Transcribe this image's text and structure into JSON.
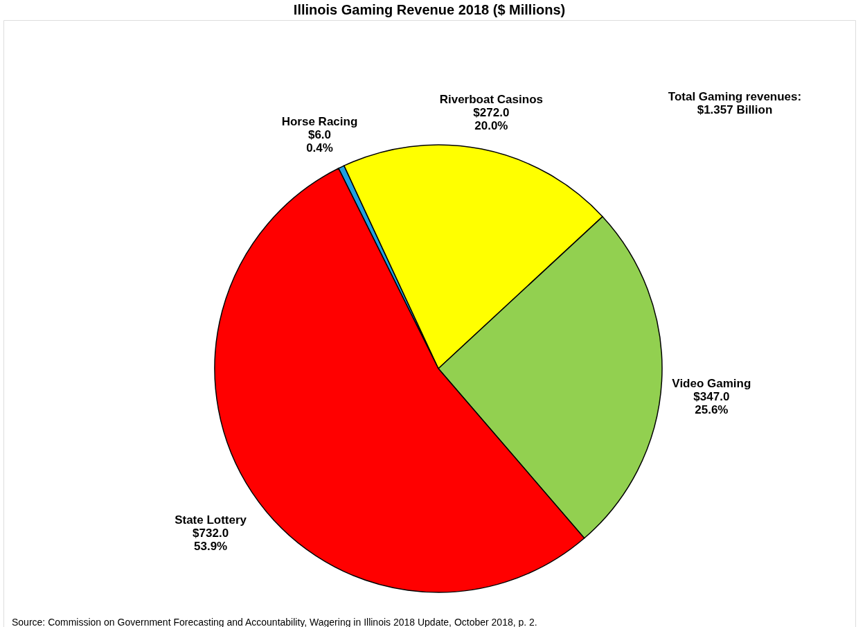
{
  "chart_data": {
    "type": "pie",
    "title": "Illinois Gaming Revenue 2018 ($ Millions)",
    "categories": [
      "Horse Racing",
      "Riverboat Casinos",
      "Video Gaming",
      "State Lottery"
    ],
    "values": [
      6.0,
      272.0,
      347.0,
      732.0
    ],
    "colors": [
      "#1fa0e0",
      "#ffff00",
      "#92d050",
      "#ff0000"
    ],
    "value_labels": [
      "$6.0\n0.4%",
      "$272.0\n20.0%",
      "$347.0\n25.6%",
      "$732.0\n53.9%"
    ],
    "legend": false,
    "annotations": [
      "Total Gaming revenues:\n$1.357 Billion",
      "Source: Commission on Government  Forecasting and Accountability, Wagering in Illinois 2018 Update, October 2018, p. 2."
    ]
  }
}
